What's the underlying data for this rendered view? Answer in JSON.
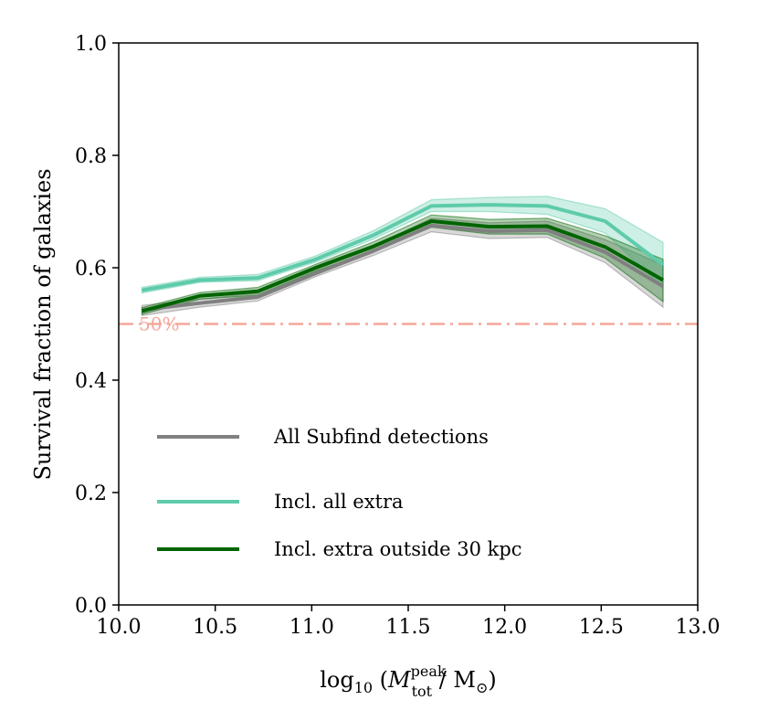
{
  "chart_data": {
    "type": "line",
    "xlabel_prefix": "log",
    "xlabel_sub": "10",
    "xlabel_var": "M",
    "xlabel_sup": "peak",
    "xlabel_varsub": "tot",
    "xlabel_unit": "/ M",
    "xlabel_unit_sub": "⊙",
    "ylabel": "Survival fraction of galaxies",
    "xlim": [
      10.0,
      13.0
    ],
    "ylim": [
      0.0,
      1.0
    ],
    "xticks": [
      "10.0",
      "10.5",
      "11.0",
      "11.5",
      "12.0",
      "12.5",
      "13.0"
    ],
    "yticks": [
      "0.0",
      "0.2",
      "0.4",
      "0.6",
      "0.8",
      "1.0"
    ],
    "x": [
      10.12,
      10.42,
      10.72,
      11.02,
      11.32,
      11.62,
      11.92,
      12.22,
      12.52,
      12.82
    ],
    "series": [
      {
        "name": "All Subfind detections",
        "color": "#808080",
        "values": [
          0.525,
          0.537,
          0.548,
          0.59,
          0.63,
          0.675,
          0.665,
          0.667,
          0.628,
          0.567
        ],
        "lower": [
          0.515,
          0.53,
          0.541,
          0.584,
          0.622,
          0.664,
          0.652,
          0.654,
          0.609,
          0.53
        ],
        "upper": [
          0.533,
          0.544,
          0.555,
          0.597,
          0.638,
          0.688,
          0.68,
          0.683,
          0.65,
          0.605
        ]
      },
      {
        "name": "Incl. all extra",
        "color": "#5ecbaa",
        "values": [
          0.56,
          0.578,
          0.582,
          0.615,
          0.658,
          0.71,
          0.712,
          0.71,
          0.683,
          0.605
        ],
        "lower": [
          0.555,
          0.574,
          0.577,
          0.61,
          0.651,
          0.7,
          0.7,
          0.695,
          0.662,
          0.565
        ],
        "upper": [
          0.565,
          0.583,
          0.588,
          0.621,
          0.666,
          0.721,
          0.725,
          0.727,
          0.705,
          0.645
        ]
      },
      {
        "name": "Incl. extra outside 30 kpc",
        "color": "#006400",
        "values": [
          0.523,
          0.55,
          0.558,
          0.6,
          0.638,
          0.683,
          0.673,
          0.674,
          0.637,
          0.578
        ],
        "lower": [
          0.517,
          0.544,
          0.551,
          0.594,
          0.63,
          0.672,
          0.66,
          0.66,
          0.617,
          0.54
        ],
        "upper": [
          0.529,
          0.556,
          0.565,
          0.606,
          0.646,
          0.694,
          0.686,
          0.688,
          0.657,
          0.615
        ]
      }
    ],
    "reference_line": {
      "value": 0.5,
      "label": "50%",
      "color": "#f4a79a"
    },
    "legend_placement": "lower-left"
  }
}
